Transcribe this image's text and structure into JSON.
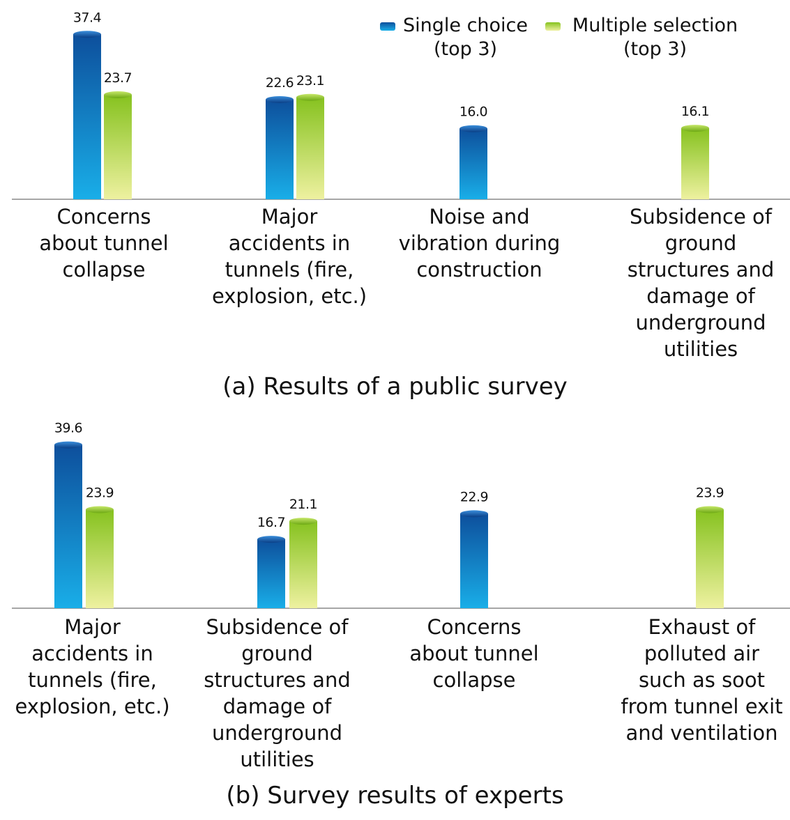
{
  "legend": {
    "single": "Single choice\n(top 3)",
    "multiple": "Multiple selection\n(top 3)"
  },
  "colors": {
    "single_top": "#0d4f9c",
    "single_bottom": "#19aee8",
    "multiple_top": "#86c21f",
    "multiple_bottom": "#eef1a0",
    "axis": "#888888"
  },
  "chart_data": [
    {
      "type": "bar",
      "title": "(a) Results of a public survey",
      "categories": [
        "Concerns\nabout tunnel\ncollapse",
        "Major\naccidents in\ntunnels (fire,\nexplosion, etc.)",
        "Noise and\nvibration during\nconstruction",
        "Subsidence of\nground\nstructures and\ndamage of\nunderground\nutilities"
      ],
      "series": [
        {
          "name": "Single choice (top 3)",
          "values": [
            37.4,
            22.6,
            16.0,
            null
          ],
          "labels": [
            "37.4",
            "22.6",
            "16.0",
            ""
          ]
        },
        {
          "name": "Multiple selection (top 3)",
          "values": [
            23.7,
            23.1,
            null,
            16.1
          ],
          "labels": [
            "23.7",
            "23.1",
            "",
            "16.1"
          ]
        }
      ],
      "ylim": [
        0,
        40
      ]
    },
    {
      "type": "bar",
      "title": "(b) Survey results of experts",
      "categories": [
        "Major\naccidents in\ntunnels (fire,\nexplosion, etc.)",
        "Subsidence of\nground\nstructures and\ndamage of\nunderground\nutilities",
        "Concerns\nabout tunnel\ncollapse",
        "Exhaust of\npolluted air\nsuch as soot\nfrom tunnel exit\nand ventilation"
      ],
      "series": [
        {
          "name": "Single choice (top 3)",
          "values": [
            39.6,
            16.7,
            22.9,
            null
          ],
          "labels": [
            "39.6",
            "16.7",
            "22.9",
            ""
          ]
        },
        {
          "name": "Multiple selection (top 3)",
          "values": [
            23.9,
            21.1,
            null,
            23.9
          ],
          "labels": [
            "23.9",
            "21.1",
            "",
            "23.9"
          ]
        }
      ],
      "ylim": [
        0,
        40
      ]
    }
  ]
}
